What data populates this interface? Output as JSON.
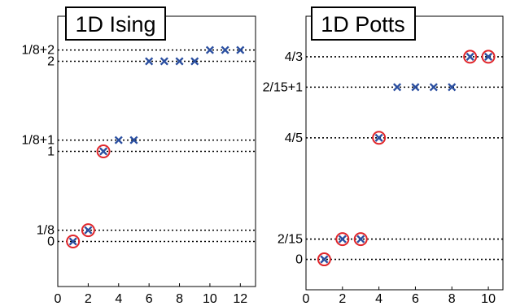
{
  "chart_data": [
    {
      "type": "scatter",
      "title": "1D Ising",
      "xlim": [
        0,
        13
      ],
      "ylim": [
        -0.5,
        2.5
      ],
      "xticks": [
        0,
        2,
        4,
        6,
        8,
        10,
        12
      ],
      "yticks": [
        {
          "label": "0",
          "value": 0
        },
        {
          "label": "1/8",
          "value": 0.125
        },
        {
          "label": "1",
          "value": 1
        },
        {
          "label": "1/8+1",
          "value": 1.125
        },
        {
          "label": "2",
          "value": 2
        },
        {
          "label": "1/8+2",
          "value": 2.125
        }
      ],
      "reference_lines": [
        0,
        0.125,
        1,
        1.125,
        2,
        2.125
      ],
      "x": [
        1,
        2,
        3,
        4,
        5,
        6,
        7,
        8,
        9,
        10,
        11,
        12
      ],
      "y": [
        0,
        0.125,
        1,
        1.125,
        1.125,
        2,
        2,
        2,
        2,
        2.125,
        2.125,
        2.125
      ],
      "circled_x": [
        1,
        2,
        3
      ],
      "grid": false
    },
    {
      "type": "scatter",
      "title": "1D Potts",
      "xlim": [
        0,
        10.8
      ],
      "ylim": [
        -0.2,
        1.6
      ],
      "xticks": [
        0,
        2,
        4,
        6,
        8,
        10
      ],
      "yticks": [
        {
          "label": "0",
          "value": 0
        },
        {
          "label": "2/15",
          "value": 0.13333
        },
        {
          "label": "4/5",
          "value": 0.8
        },
        {
          "label": "2/15+1",
          "value": 1.13333
        },
        {
          "label": "4/3",
          "value": 1.33333
        }
      ],
      "reference_lines": [
        0,
        0.13333,
        0.8,
        1.13333,
        1.33333
      ],
      "x": [
        1,
        2,
        3,
        4,
        5,
        6,
        7,
        8,
        9,
        10
      ],
      "y": [
        0,
        0.13333,
        0.13333,
        0.8,
        1.13333,
        1.13333,
        1.13333,
        1.13333,
        1.33333,
        1.33333
      ],
      "circled_x": [
        1,
        2,
        3,
        4,
        9,
        10
      ],
      "grid": false
    }
  ],
  "colors": {
    "cross": "#2b4fa0",
    "circle": "#e0262b",
    "axis": "#000000",
    "dotted_line": "#000000"
  }
}
